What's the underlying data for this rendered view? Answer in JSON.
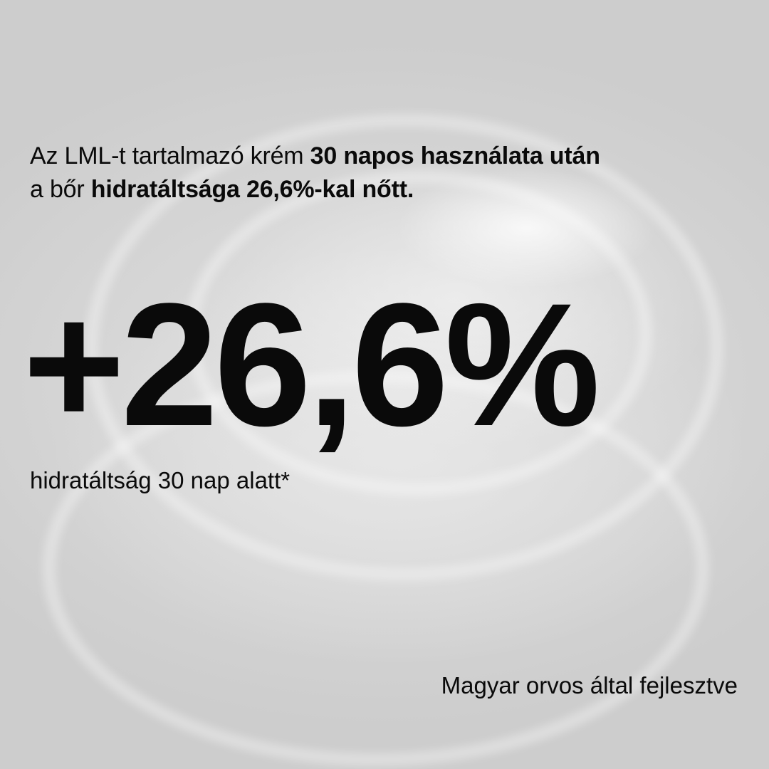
{
  "intro": {
    "part1": "Az LML-t tartalmazó krém ",
    "bold1": "30 napos használata után",
    "part2": "a bőr ",
    "bold2": "hidratáltsága 26,6%-kal nőtt."
  },
  "stat": {
    "value": "+26,6%",
    "caption": "hidratáltság 30 nap alatt*"
  },
  "footer": "Magyar orvos által fejlesztve"
}
